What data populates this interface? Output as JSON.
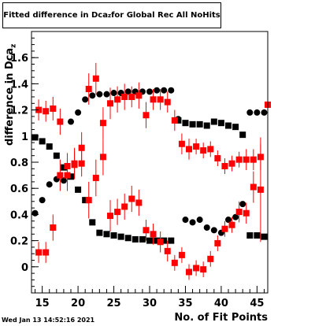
{
  "title_prefix": "Fitted difference in Dca",
  "title_sub": "z",
  "title_suffix": " for Global Rec All NoHits",
  "ylabel_main": "difference in Dca",
  "ylabel_sub": "z",
  "timestamp": "Wed Jan 13 14:52:16 2021",
  "chart_data": {
    "type": "scatter",
    "title": "Fitted difference in Dca_z for Global Rec All NoHits",
    "xlabel": "No. of Fit Points",
    "ylabel": "difference in Dca_z",
    "xlim": [
      13.5,
      46.5
    ],
    "ylim": [
      -0.2,
      1.8
    ],
    "x_ticks": [
      15,
      20,
      25,
      30,
      35,
      40,
      45
    ],
    "x_tick_labels": [
      "15",
      "20",
      "25",
      "30",
      "35",
      "40",
      "45"
    ],
    "y_ticks": [
      0,
      0.2,
      0.4,
      0.6,
      0.8,
      1.0,
      1.2,
      1.4,
      1.6
    ],
    "y_tick_labels": [
      "0",
      "0.2",
      "0.4",
      "0.6",
      "0.8",
      "1",
      "1.2",
      "1.4",
      "1.6"
    ],
    "series": [
      {
        "color": "#000000",
        "marker": "circle",
        "points": [
          [
            14,
            0.41
          ],
          [
            15,
            0.51
          ],
          [
            16,
            0.63
          ],
          [
            17,
            0.67
          ],
          [
            18,
            0.66
          ],
          [
            19,
            1.11
          ],
          [
            20,
            1.18
          ],
          [
            21,
            1.28
          ],
          [
            22,
            1.31
          ],
          [
            23,
            1.32
          ],
          [
            24,
            1.32
          ],
          [
            25,
            1.33
          ],
          [
            26,
            1.33
          ],
          [
            27,
            1.34
          ],
          [
            28,
            1.34
          ],
          [
            29,
            1.34
          ],
          [
            30,
            1.34
          ],
          [
            31,
            1.35
          ],
          [
            32,
            1.35
          ],
          [
            33,
            1.35
          ],
          [
            34,
            1.13
          ],
          [
            35,
            0.36
          ],
          [
            36,
            0.34
          ],
          [
            37,
            0.36
          ],
          [
            38,
            0.3
          ],
          [
            39,
            0.28
          ],
          [
            40,
            0.26
          ],
          [
            41,
            0.36
          ],
          [
            42,
            0.38
          ],
          [
            43,
            0.48
          ],
          [
            44,
            1.18
          ],
          [
            45,
            1.18
          ],
          [
            46,
            1.18
          ]
        ]
      },
      {
        "color": "#000000",
        "marker": "square",
        "points": [
          [
            14,
            0.99
          ],
          [
            15,
            0.96
          ],
          [
            16,
            0.92
          ],
          [
            17,
            0.85
          ],
          [
            18,
            0.76
          ],
          [
            19,
            0.69
          ],
          [
            20,
            0.59
          ],
          [
            21,
            0.51
          ],
          [
            22,
            0.34
          ],
          [
            23,
            0.26
          ],
          [
            24,
            0.25
          ],
          [
            25,
            0.24
          ],
          [
            26,
            0.23
          ],
          [
            27,
            0.22
          ],
          [
            28,
            0.21
          ],
          [
            29,
            0.21
          ],
          [
            30,
            0.2
          ],
          [
            31,
            0.2
          ],
          [
            32,
            0.2
          ],
          [
            33,
            0.2
          ],
          [
            34,
            1.12
          ],
          [
            35,
            1.1
          ],
          [
            36,
            1.09
          ],
          [
            37,
            1.09
          ],
          [
            38,
            1.08
          ],
          [
            39,
            1.11
          ],
          [
            40,
            1.1
          ],
          [
            41,
            1.08
          ],
          [
            42,
            1.07
          ],
          [
            43,
            1.01
          ],
          [
            44,
            0.24
          ],
          [
            45,
            0.24
          ],
          [
            46,
            0.23
          ]
        ]
      },
      {
        "color": "#ff0000",
        "marker": "square",
        "points": [
          [
            14.5,
            1.2,
            0.08
          ],
          [
            15.5,
            1.19,
            0.08
          ],
          [
            16.5,
            1.21,
            0.09
          ],
          [
            17.5,
            1.11,
            0.1
          ],
          [
            18.5,
            0.77,
            0.1
          ],
          [
            19.5,
            0.78,
            0.1
          ],
          [
            20.5,
            0.79,
            0.1
          ],
          [
            21.5,
            1.36,
            0.12
          ],
          [
            22.5,
            1.44,
            0.12
          ],
          [
            23.5,
            1.1,
            0.12
          ],
          [
            24.5,
            1.25,
            0.12
          ],
          [
            25.5,
            1.28,
            0.1
          ],
          [
            26.5,
            1.3,
            0.1
          ],
          [
            27.5,
            1.3,
            0.08
          ],
          [
            28.5,
            1.31,
            0.1
          ],
          [
            29.5,
            1.16,
            0.1
          ],
          [
            30.5,
            1.28,
            0.08
          ],
          [
            31.5,
            1.28,
            0.08
          ],
          [
            32.5,
            1.26,
            0.08
          ],
          [
            33.5,
            1.12,
            0.08
          ],
          [
            34.5,
            0.94,
            0.08
          ],
          [
            35.5,
            0.9,
            0.08
          ],
          [
            36.5,
            0.92,
            0.06
          ],
          [
            37.5,
            0.89,
            0.06
          ],
          [
            38.5,
            0.9,
            0.06
          ],
          [
            39.5,
            0.83,
            0.06
          ],
          [
            40.5,
            0.77,
            0.06
          ],
          [
            41.5,
            0.79,
            0.06
          ],
          [
            42.5,
            0.82,
            0.06
          ],
          [
            43.5,
            0.82,
            0.08
          ],
          [
            44.5,
            0.82,
            0.08
          ],
          [
            45.5,
            0.84,
            0.1
          ],
          [
            46.5,
            1.24,
            0.4
          ]
        ]
      },
      {
        "color": "#ff0000",
        "marker": "square",
        "points": [
          [
            14.5,
            0.11,
            0.08
          ],
          [
            15.5,
            0.11,
            0.08
          ],
          [
            16.5,
            0.3,
            0.1
          ],
          [
            17.5,
            0.7,
            0.12
          ],
          [
            18.5,
            0.7,
            0.12
          ],
          [
            19.5,
            0.79,
            0.12
          ],
          [
            20.5,
            0.91,
            0.12
          ],
          [
            21.5,
            0.51,
            0.14
          ],
          [
            22.5,
            0.68,
            0.14
          ],
          [
            23.5,
            0.84,
            0.14
          ],
          [
            24.5,
            0.39,
            0.12
          ],
          [
            25.5,
            0.42,
            0.1
          ],
          [
            26.5,
            0.46,
            0.1
          ],
          [
            27.5,
            0.52,
            0.1
          ],
          [
            28.5,
            0.49,
            0.1
          ],
          [
            29.5,
            0.28,
            0.08
          ],
          [
            30.5,
            0.25,
            0.08
          ],
          [
            31.5,
            0.19,
            0.08
          ],
          [
            32.5,
            0.12,
            0.08
          ],
          [
            33.5,
            0.03,
            0.06
          ],
          [
            34.5,
            0.09,
            0.06
          ],
          [
            35.5,
            -0.04,
            0.06
          ],
          [
            36.5,
            -0.01,
            0.06
          ],
          [
            37.5,
            -0.02,
            0.06
          ],
          [
            38.5,
            0.06,
            0.06
          ],
          [
            39.5,
            0.18,
            0.06
          ],
          [
            40.5,
            0.29,
            0.06
          ],
          [
            41.5,
            0.32,
            0.06
          ],
          [
            42.5,
            0.42,
            0.08
          ],
          [
            43.5,
            0.41,
            0.08
          ],
          [
            44.5,
            0.61,
            0.12
          ],
          [
            45.5,
            0.59,
            0.4
          ]
        ]
      }
    ]
  }
}
